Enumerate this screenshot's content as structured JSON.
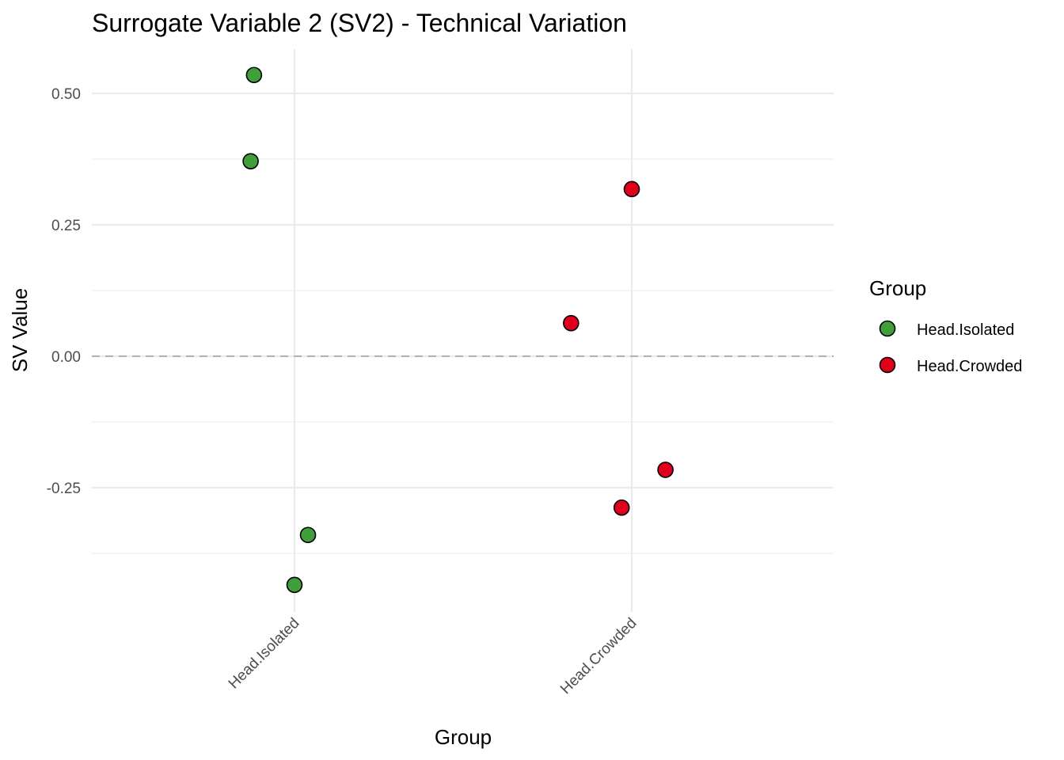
{
  "chart_data": {
    "type": "scatter",
    "title": "Surrogate Variable 2 (SV2) - Technical Variation",
    "xlabel": "Group",
    "ylabel": "SV Value",
    "categories": [
      "Head.Isolated",
      "Head.Crowded"
    ],
    "y_ticks": [
      -0.25,
      0.0,
      0.25,
      0.5
    ],
    "y_tick_labels": [
      "-0.25",
      "0.00",
      "0.25",
      "0.50"
    ],
    "ylim": [
      -0.475,
      0.585
    ],
    "reference_line": {
      "y": 0.0,
      "style": "dashed"
    },
    "grid": true,
    "legend": {
      "title": "Group",
      "placement": "right",
      "entries": [
        {
          "label": "Head.Isolated",
          "color": "#3f9f3a"
        },
        {
          "label": "Head.Crowded",
          "color": "#e0001b"
        }
      ]
    },
    "series": [
      {
        "name": "Head.Isolated",
        "color": "#3f9f3a",
        "points": [
          {
            "category": "Head.Isolated",
            "jitter": -0.12,
            "value": 0.535
          },
          {
            "category": "Head.Isolated",
            "jitter": -0.13,
            "value": 0.371
          },
          {
            "category": "Head.Isolated",
            "jitter": 0.04,
            "value": -0.34
          },
          {
            "category": "Head.Isolated",
            "jitter": 0.0,
            "value": -0.435
          }
        ]
      },
      {
        "name": "Head.Crowded",
        "color": "#e0001b",
        "points": [
          {
            "category": "Head.Crowded",
            "jitter": 0.0,
            "value": 0.318
          },
          {
            "category": "Head.Crowded",
            "jitter": -0.18,
            "value": 0.063
          },
          {
            "category": "Head.Crowded",
            "jitter": 0.1,
            "value": -0.216
          },
          {
            "category": "Head.Crowded",
            "jitter": -0.03,
            "value": -0.288
          }
        ]
      }
    ]
  }
}
